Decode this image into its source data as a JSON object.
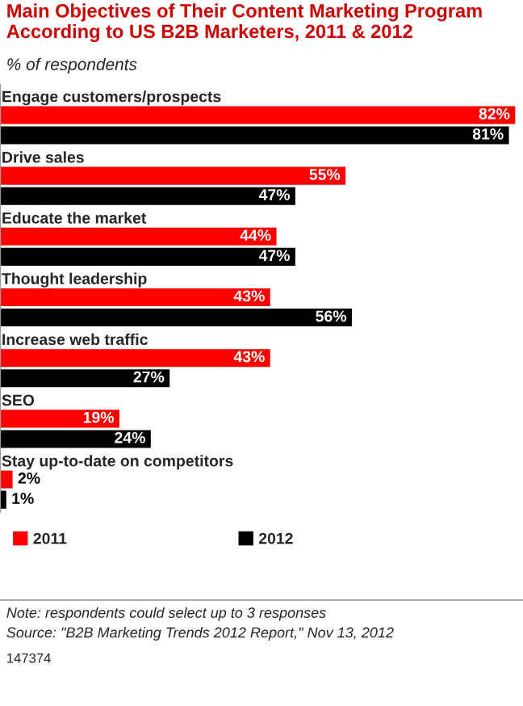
{
  "chart_data": {
    "type": "bar",
    "orientation": "horizontal",
    "title": "Main Objectives of Their Content Marketing Program According to US B2B Marketers, 2011 & 2012",
    "subtitle": "% of respondents",
    "categories": [
      "Engage customers/prospects",
      "Drive sales",
      "Educate the market",
      "Thought leadership",
      "Increase web traffic",
      "SEO",
      "Stay up-to-date on competitors"
    ],
    "series": [
      {
        "name": "2011",
        "color": "#ff0000",
        "values": [
          82,
          55,
          44,
          43,
          43,
          19,
          2
        ],
        "value_labels": [
          "82%",
          "55%",
          "44%",
          "43%",
          "43%",
          "19%",
          "2%"
        ]
      },
      {
        "name": "2012",
        "color": "#000000",
        "values": [
          81,
          47,
          47,
          56,
          27,
          24,
          1
        ],
        "value_labels": [
          "81%",
          "47%",
          "47%",
          "56%",
          "27%",
          "24%",
          "1%"
        ]
      }
    ],
    "legend": "bottom",
    "annotations": [
      "Note: respondents could select up to 3 responses",
      "Source: \"B2B Marketing Trends 2012 Report,\" Nov 13, 2012",
      "147374"
    ]
  }
}
